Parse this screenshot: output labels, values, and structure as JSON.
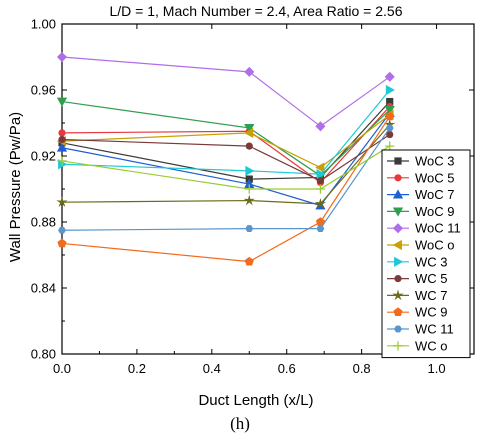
{
  "chart_data": {
    "type": "line",
    "title": "L/D = 1, Mach Number = 2.4, Area Ratio = 2.56",
    "xlabel": "Duct Length (x/L)",
    "ylabel": "Wall Pressure (Pw/Pa)",
    "xlim": [
      0.0,
      1.1
    ],
    "ylim": [
      0.8,
      1.0
    ],
    "xticks": [
      "0.0",
      "0.2",
      "0.4",
      "0.6",
      "0.8",
      "1.0"
    ],
    "yticks": [
      "0.80",
      "0.84",
      "0.88",
      "0.92",
      "0.96",
      "1.00"
    ],
    "x": [
      0.0,
      0.5,
      0.69,
      0.875
    ],
    "legend_position": "right",
    "grid": false,
    "series": [
      {
        "name": "WoC 3",
        "color": "#3a3a3a",
        "marker": "square",
        "values": [
          0.928,
          0.906,
          0.907,
          0.953
        ]
      },
      {
        "name": "WoC 5",
        "color": "#e8383d",
        "marker": "circle",
        "values": [
          0.934,
          0.935,
          0.904,
          0.95
        ]
      },
      {
        "name": "WoC 7",
        "color": "#1f5fd6",
        "marker": "triangle-up",
        "values": [
          0.925,
          0.903,
          0.89,
          0.946
        ]
      },
      {
        "name": "WoC 9",
        "color": "#2e9e4f",
        "marker": "triangle-down",
        "values": [
          0.953,
          0.937,
          0.908,
          0.948
        ]
      },
      {
        "name": "WoC 11",
        "color": "#b06ee8",
        "marker": "diamond",
        "values": [
          0.98,
          0.971,
          0.938,
          0.968
        ]
      },
      {
        "name": "WoC o",
        "color": "#c8a000",
        "marker": "triangle-left",
        "values": [
          0.929,
          0.934,
          0.913,
          0.945
        ]
      },
      {
        "name": "WC 3",
        "color": "#1ec9d6",
        "marker": "triangle-right",
        "values": [
          0.915,
          0.911,
          0.909,
          0.96
        ]
      },
      {
        "name": "WC 5",
        "color": "#7a3a3a",
        "marker": "circle",
        "values": [
          0.93,
          0.926,
          0.905,
          0.933
        ]
      },
      {
        "name": "WC 7",
        "color": "#6b6b1a",
        "marker": "star",
        "values": [
          0.892,
          0.893,
          0.891,
          0.939
        ]
      },
      {
        "name": "WC 9",
        "color": "#f26a1b",
        "marker": "pentagon",
        "values": [
          0.867,
          0.856,
          0.88,
          0.944
        ]
      },
      {
        "name": "WC 11",
        "color": "#5a96cc",
        "marker": "hexagon",
        "values": [
          0.875,
          0.876,
          0.876,
          0.937
        ]
      },
      {
        "name": "WC o",
        "color": "#9acd32",
        "marker": "plus",
        "values": [
          0.917,
          0.9,
          0.9,
          0.926
        ]
      }
    ]
  },
  "caption": "(h)"
}
